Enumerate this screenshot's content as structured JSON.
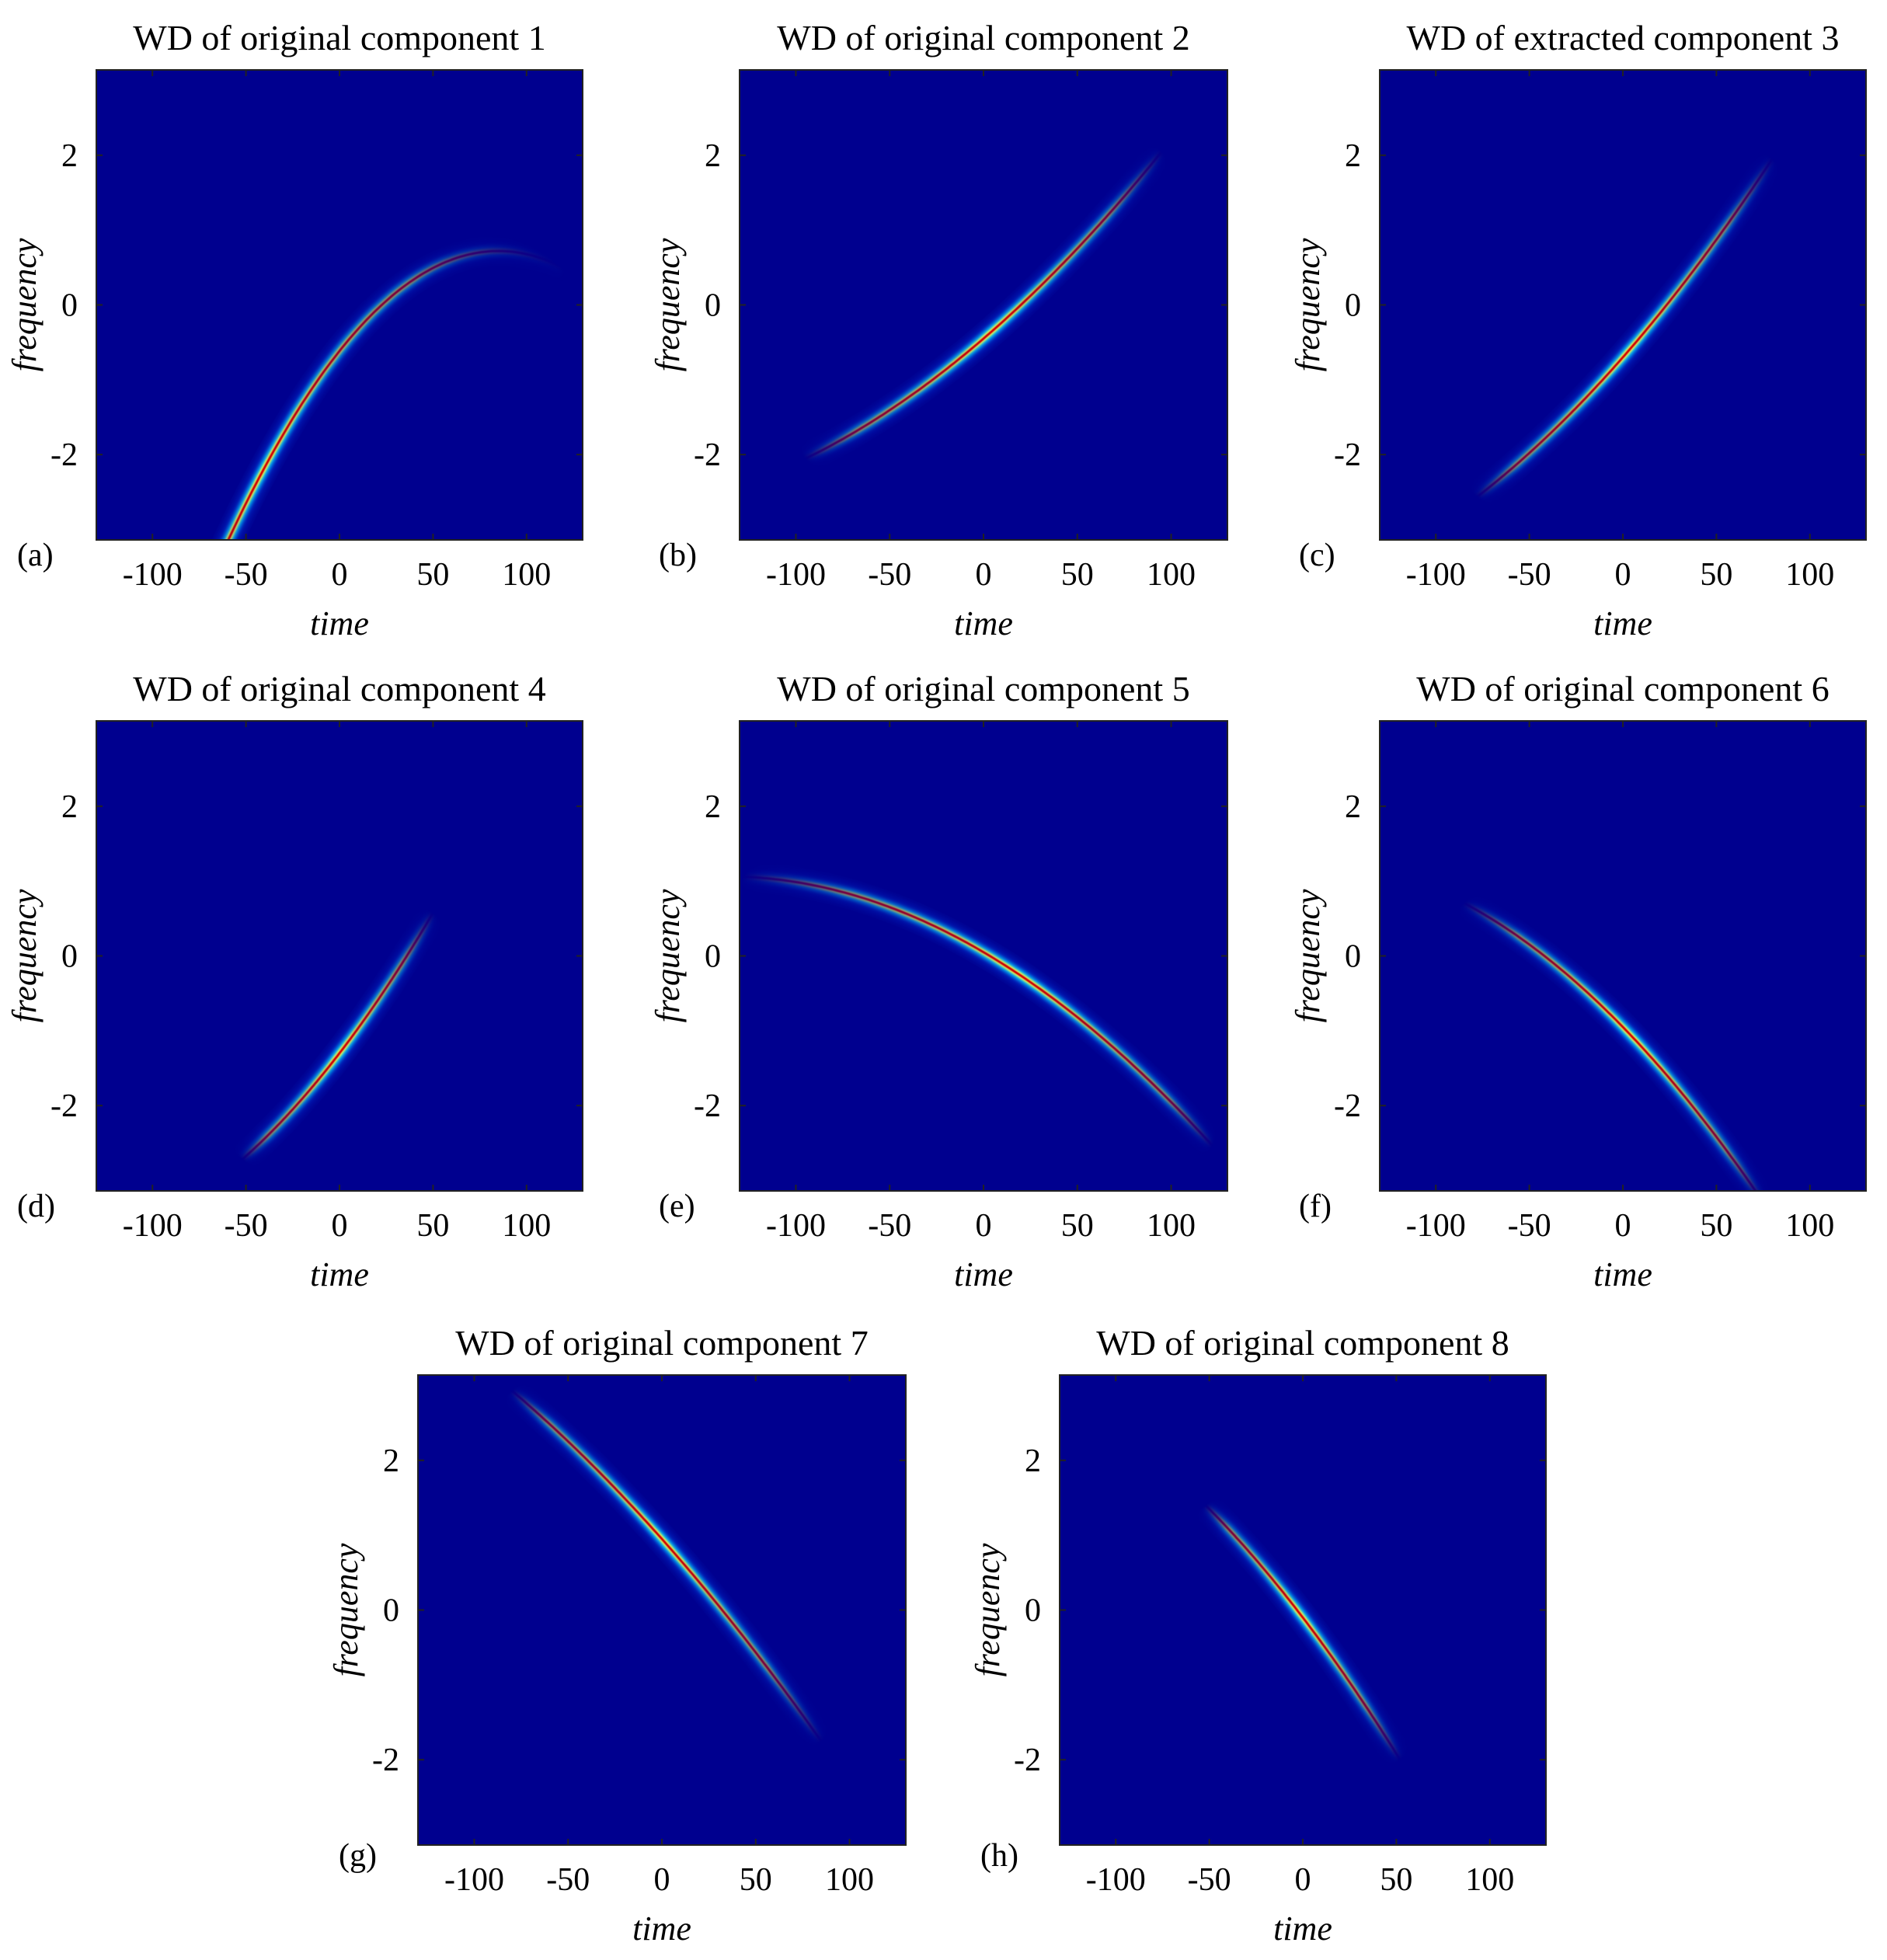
{
  "chart_data": [
    {
      "type": "heatmap",
      "panel_label": "(a)",
      "title": "WD of original component 1",
      "xlabel": "time",
      "ylabel": "frequency",
      "xlim": [
        -130,
        130
      ],
      "ylim": [
        -3.14,
        3.14
      ],
      "xticks": [
        "-100",
        "-50",
        "0",
        "50",
        "100"
      ],
      "yticks": [
        "-2",
        "0",
        "2"
      ],
      "colormap": "jet",
      "ridge": {
        "t_start": -112,
        "t_end": 118,
        "t0": 85,
        "f_peak": 0.72,
        "curvature": -0.000185,
        "slope": 0
      },
      "peak_center_time": 0
    },
    {
      "type": "heatmap",
      "panel_label": "(b)",
      "title": "WD of original component 2",
      "xlabel": "time",
      "ylabel": "frequency",
      "xlim": [
        -130,
        130
      ],
      "ylim": [
        -3.14,
        3.14
      ],
      "xticks": [
        "-100",
        "-50",
        "0",
        "50",
        "100"
      ],
      "yticks": [
        "-2",
        "0",
        "2"
      ],
      "colormap": "jet",
      "ridge": {
        "t_start": -95,
        "t_end": 95,
        "t0": 0,
        "f_peak": -0.45,
        "curvature": 4.95e-05,
        "slope": 0.0216
      },
      "peak_center_time": -5
    },
    {
      "type": "heatmap",
      "panel_label": "(c)",
      "title": "WD of extracted component 3",
      "xlabel": "time",
      "ylabel": "frequency",
      "xlim": [
        -130,
        130
      ],
      "ylim": [
        -3.14,
        3.14
      ],
      "xticks": [
        "-100",
        "-50",
        "0",
        "50",
        "100"
      ],
      "yticks": [
        "-2",
        "0",
        "2"
      ],
      "colormap": "jet",
      "ridge": {
        "t_start": -78,
        "t_end": 80,
        "t0": 0,
        "f_peak": -0.7,
        "curvature": 5.86e-05,
        "slope": 0.0285
      },
      "peak_center_time": -5
    },
    {
      "type": "heatmap",
      "panel_label": "(d)",
      "title": "WD of original component 4",
      "xlabel": "time",
      "ylabel": "frequency",
      "xlim": [
        -130,
        130
      ],
      "ylim": [
        -3.14,
        3.14
      ],
      "xticks": [
        "-100",
        "-50",
        "0",
        "50",
        "100"
      ],
      "yticks": [
        "-2",
        "0",
        "2"
      ],
      "colormap": "jet",
      "ridge": {
        "t_start": -52,
        "t_end": 50,
        "t0": 0,
        "f_peak": -1.3,
        "curvature": 0.0001,
        "slope": 0.0325
      },
      "peak_center_time": -5
    },
    {
      "type": "heatmap",
      "panel_label": "(e)",
      "title": "WD of original component 5",
      "xlabel": "time",
      "ylabel": "frequency",
      "xlim": [
        -130,
        130
      ],
      "ylim": [
        -3.14,
        3.14
      ],
      "xticks": [
        "-100",
        "-50",
        "0",
        "50",
        "100"
      ],
      "yticks": [
        "-2",
        "0",
        "2"
      ],
      "colormap": "jet",
      "ridge": {
        "t_start": -128,
        "t_end": 122,
        "t0": 0,
        "f_peak": 0.05,
        "curvature": -5.33e-05,
        "slope": -0.0147
      },
      "peak_center_time": 5
    },
    {
      "type": "heatmap",
      "panel_label": "(f)",
      "title": "WD of original component 6",
      "xlabel": "time",
      "ylabel": "frequency",
      "xlim": [
        -130,
        130
      ],
      "ylim": [
        -3.14,
        3.14
      ],
      "xticks": [
        "-100",
        "-50",
        "0",
        "50",
        "100"
      ],
      "yticks": [
        "-2",
        "0",
        "2"
      ],
      "colormap": "jet",
      "ridge": {
        "t_start": -85,
        "t_end": 75,
        "t0": 0,
        "f_peak": -0.95,
        "curvature": -7.3e-05,
        "slope": -0.0257
      },
      "peak_center_time": -5
    },
    {
      "type": "heatmap",
      "panel_label": "(g)",
      "title": "WD of original component 7",
      "xlabel": "time",
      "ylabel": "frequency",
      "xlim": [
        -130,
        130
      ],
      "ylim": [
        -3.14,
        3.14
      ],
      "xticks": [
        "-100",
        "-50",
        "0",
        "50",
        "100"
      ],
      "yticks": [
        "-2",
        "0",
        "2"
      ],
      "colormap": "jet",
      "ridge": {
        "t_start": -80,
        "t_end": 85,
        "t0": 0,
        "f_peak": 0.95,
        "curvature": -4.27e-05,
        "slope": -0.0282
      },
      "peak_center_time": -5
    },
    {
      "type": "heatmap",
      "panel_label": "(h)",
      "title": "WD of original component 8",
      "xlabel": "time",
      "ylabel": "frequency",
      "xlim": [
        -130,
        130
      ],
      "ylim": [
        -3.14,
        3.14
      ],
      "xticks": [
        "-100",
        "-50",
        "0",
        "50",
        "100"
      ],
      "yticks": [
        "-2",
        "0",
        "2"
      ],
      "colormap": "jet",
      "ridge": {
        "t_start": -52,
        "t_end": 52,
        "t0": 0,
        "f_peak": -0.1,
        "curvature": -7.4e-05,
        "slope": -0.0327
      },
      "peak_center_time": -5
    }
  ],
  "colors": {
    "background": "#00008f",
    "ridge_outer": "#0a3ce8",
    "ridge_mid": "#00c8ff",
    "ridge_inner": "#ffff40",
    "ridge_core": "#d40000"
  }
}
